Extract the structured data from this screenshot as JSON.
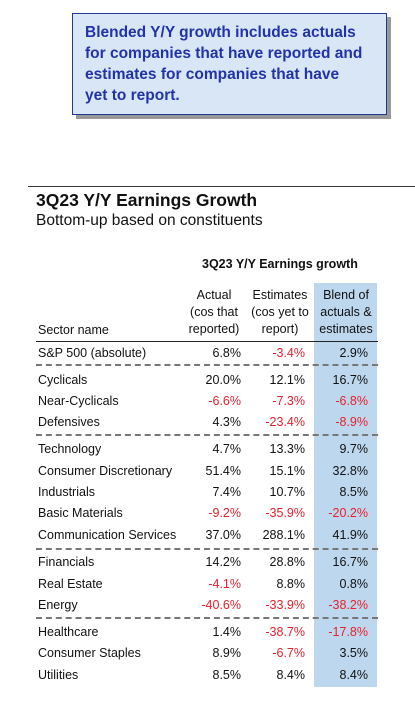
{
  "callout": {
    "lines": [
      "Blended Y/Y growth includes actuals",
      "for companies that have reported and",
      "estimates for companies that have",
      "yet to report."
    ]
  },
  "title": "3Q23 Y/Y Earnings Growth",
  "subtitle": "Bottom-up based on constituents",
  "colors": {
    "negative": "#e8202a",
    "blend_column": "#bdd7ee",
    "callout_bg": "#d9e6f6",
    "callout_text": "#2233a8"
  },
  "chart_data": {
    "type": "table",
    "table_title": "3Q23 Y/Y Earnings growth",
    "row_header": "Sector name",
    "columns": [
      {
        "lines": [
          "Actual",
          "(cos that",
          "reported)"
        ]
      },
      {
        "lines": [
          "Estimates",
          "(cos yet to",
          "report)"
        ]
      },
      {
        "lines": [
          "Blend of",
          "actuals &",
          "estimates"
        ]
      }
    ],
    "rows": [
      {
        "name": "S&P 500 (absolute)",
        "actual": "6.8%",
        "estimates": "-3.4%",
        "blend": "2.9%"
      },
      {
        "name": "Cyclicals",
        "actual": "20.0%",
        "estimates": "12.1%",
        "blend": "16.7%"
      },
      {
        "name": "Near-Cyclicals",
        "actual": "-6.6%",
        "estimates": "-7.3%",
        "blend": "-6.8%"
      },
      {
        "name": "Defensives",
        "actual": "4.3%",
        "estimates": "-23.4%",
        "blend": "-8.9%"
      },
      {
        "name": "Technology",
        "actual": "4.7%",
        "estimates": "13.3%",
        "blend": "9.7%"
      },
      {
        "name": "Consumer Discretionary",
        "actual": "51.4%",
        "estimates": "15.1%",
        "blend": "32.8%"
      },
      {
        "name": "Industrials",
        "actual": "7.4%",
        "estimates": "10.7%",
        "blend": "8.5%"
      },
      {
        "name": "Basic Materials",
        "actual": "-9.2%",
        "estimates": "-35.9%",
        "blend": "-20.2%"
      },
      {
        "name": "Communication Services",
        "actual": "37.0%",
        "estimates": "288.1%",
        "blend": "41.9%"
      },
      {
        "name": "Financials",
        "actual": "14.2%",
        "estimates": "28.8%",
        "blend": "16.7%"
      },
      {
        "name": "Real Estate",
        "actual": "-4.1%",
        "estimates": "8.8%",
        "blend": "0.8%"
      },
      {
        "name": "Energy",
        "actual": "-40.6%",
        "estimates": "-33.9%",
        "blend": "-38.2%"
      },
      {
        "name": "Healthcare",
        "actual": "1.4%",
        "estimates": "-38.7%",
        "blend": "-17.8%"
      },
      {
        "name": "Consumer Staples",
        "actual": "8.9%",
        "estimates": "-6.7%",
        "blend": "3.5%"
      },
      {
        "name": "Utilities",
        "actual": "8.5%",
        "estimates": "8.4%",
        "blend": "8.4%"
      }
    ]
  }
}
